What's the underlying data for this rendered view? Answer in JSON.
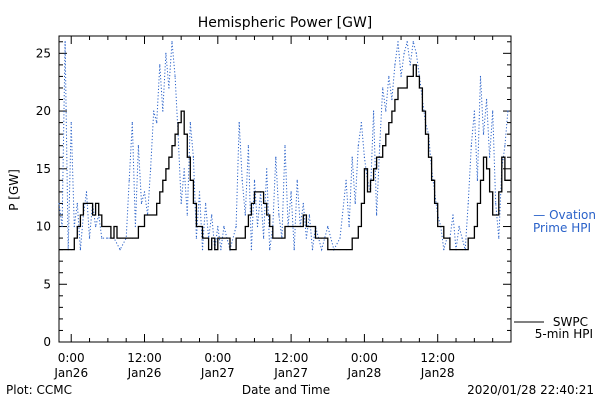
{
  "chart_data": {
    "type": "line",
    "title": "Hemispheric Power [GW]",
    "ylabel": "P [GW]",
    "xlabel": "Date and Time",
    "ylim": [
      0,
      26.5
    ],
    "xlim_hours": [
      -2,
      72
    ],
    "yticks": [
      0,
      5,
      10,
      15,
      20,
      25
    ],
    "xticks": [
      {
        "hour": 0,
        "time": "0:00",
        "date": "Jan26"
      },
      {
        "hour": 12,
        "time": "12:00",
        "date": "Jan26"
      },
      {
        "hour": 24,
        "time": "0:00",
        "date": "Jan27"
      },
      {
        "hour": 36,
        "time": "12:00",
        "date": "Jan27"
      },
      {
        "hour": 48,
        "time": "0:00",
        "date": "Jan28"
      },
      {
        "hour": 60,
        "time": "12:00",
        "date": "Jan28"
      }
    ],
    "footer_left": "Plot: CCMC",
    "footer_right": "2020/01/28 22:40:21",
    "series": [
      {
        "name": "SWPC 5-min HPI",
        "legend_line1": "SWPC",
        "legend_line2": "5-min HPI",
        "color": "#000000",
        "style": "solid-step",
        "points": [
          [
            -2,
            8
          ],
          [
            0,
            8
          ],
          [
            0.5,
            9
          ],
          [
            1,
            10
          ],
          [
            1.5,
            11
          ],
          [
            2,
            12
          ],
          [
            2.5,
            12
          ],
          [
            3,
            12
          ],
          [
            3.5,
            11
          ],
          [
            4,
            12
          ],
          [
            4.5,
            11
          ],
          [
            5,
            10
          ],
          [
            6,
            10
          ],
          [
            6.5,
            9
          ],
          [
            7,
            10
          ],
          [
            7.5,
            9
          ],
          [
            8,
            9
          ],
          [
            9,
            9
          ],
          [
            10,
            9
          ],
          [
            11,
            10
          ],
          [
            12,
            11
          ],
          [
            13,
            11
          ],
          [
            14,
            12
          ],
          [
            14.5,
            13
          ],
          [
            15,
            14
          ],
          [
            15.5,
            15
          ],
          [
            16,
            16
          ],
          [
            16.5,
            17
          ],
          [
            17,
            18
          ],
          [
            17.5,
            19
          ],
          [
            18,
            20
          ],
          [
            18.5,
            18
          ],
          [
            19,
            16
          ],
          [
            19.5,
            14
          ],
          [
            20,
            12
          ],
          [
            20.5,
            10
          ],
          [
            21,
            10
          ],
          [
            21.5,
            9
          ],
          [
            22,
            9
          ],
          [
            22.5,
            8
          ],
          [
            23,
            9
          ],
          [
            23.5,
            8
          ],
          [
            24,
            9
          ],
          [
            25,
            9
          ],
          [
            26,
            8
          ],
          [
            27,
            9
          ],
          [
            28,
            9
          ],
          [
            28.5,
            10
          ],
          [
            29,
            11
          ],
          [
            29.5,
            12
          ],
          [
            30,
            13
          ],
          [
            31,
            13
          ],
          [
            31.5,
            12
          ],
          [
            32,
            11
          ],
          [
            32.5,
            10
          ],
          [
            33,
            9
          ],
          [
            34,
            9
          ],
          [
            35,
            10
          ],
          [
            36,
            10
          ],
          [
            37,
            10
          ],
          [
            38,
            11
          ],
          [
            38.5,
            10
          ],
          [
            39,
            10
          ],
          [
            40,
            9
          ],
          [
            41,
            9
          ],
          [
            42,
            8
          ],
          [
            43,
            8
          ],
          [
            44,
            8
          ],
          [
            45,
            8
          ],
          [
            46,
            9
          ],
          [
            47,
            10
          ],
          [
            47.5,
            12
          ],
          [
            48,
            15
          ],
          [
            48.5,
            13
          ],
          [
            49,
            14
          ],
          [
            49.5,
            15
          ],
          [
            50,
            16
          ],
          [
            51,
            17
          ],
          [
            51.5,
            18
          ],
          [
            52,
            19
          ],
          [
            52.5,
            20
          ],
          [
            53,
            21
          ],
          [
            53.5,
            22
          ],
          [
            54,
            22
          ],
          [
            55,
            23
          ],
          [
            56,
            24
          ],
          [
            56.5,
            23
          ],
          [
            57,
            22
          ],
          [
            57.5,
            20
          ],
          [
            58,
            18
          ],
          [
            58.5,
            16
          ],
          [
            59,
            14
          ],
          [
            59.5,
            12
          ],
          [
            60,
            10
          ],
          [
            61,
            9
          ],
          [
            62,
            8
          ],
          [
            63,
            8
          ],
          [
            64,
            8
          ],
          [
            65,
            9
          ],
          [
            66,
            10
          ],
          [
            66.5,
            12
          ],
          [
            67,
            14
          ],
          [
            67.5,
            16
          ],
          [
            68,
            15
          ],
          [
            68.5,
            13
          ],
          [
            69,
            11
          ],
          [
            69.5,
            11
          ],
          [
            70,
            13
          ],
          [
            70.5,
            16
          ],
          [
            71,
            14
          ]
        ]
      },
      {
        "name": "Ovation Prime HPI",
        "legend_line1": "— Ovation",
        "legend_line2": "Prime HPI",
        "color": "#2a62c9",
        "style": "dotted",
        "points": [
          [
            -2,
            12
          ],
          [
            -1.5,
            10
          ],
          [
            -1,
            26
          ],
          [
            -0.5,
            8
          ],
          [
            0,
            19
          ],
          [
            0.5,
            10
          ],
          [
            1,
            12
          ],
          [
            1.5,
            8
          ],
          [
            2,
            11
          ],
          [
            2.5,
            13
          ],
          [
            3,
            9
          ],
          [
            3.5,
            12
          ],
          [
            4,
            10
          ],
          [
            4.5,
            11
          ],
          [
            5,
            9
          ],
          [
            6,
            9
          ],
          [
            7,
            9
          ],
          [
            8,
            8
          ],
          [
            9,
            9
          ],
          [
            9.5,
            14
          ],
          [
            10,
            19
          ],
          [
            10.5,
            10
          ],
          [
            11,
            17
          ],
          [
            11.5,
            12
          ],
          [
            12,
            13
          ],
          [
            12.5,
            11
          ],
          [
            13,
            15
          ],
          [
            13.5,
            20
          ],
          [
            14,
            19
          ],
          [
            14.5,
            24
          ],
          [
            15,
            20
          ],
          [
            15.5,
            25
          ],
          [
            16,
            22
          ],
          [
            16.5,
            26
          ],
          [
            17,
            23
          ],
          [
            17.5,
            18
          ],
          [
            18,
            12
          ],
          [
            18.5,
            15
          ],
          [
            19,
            11
          ],
          [
            19.5,
            19
          ],
          [
            20,
            16
          ],
          [
            20.5,
            9
          ],
          [
            21,
            13
          ],
          [
            21.5,
            8
          ],
          [
            22,
            12
          ],
          [
            22.5,
            9
          ],
          [
            23,
            11
          ],
          [
            23.5,
            8
          ],
          [
            24,
            10
          ],
          [
            24.5,
            8
          ],
          [
            25,
            10
          ],
          [
            26,
            8
          ],
          [
            27,
            10
          ],
          [
            27.5,
            19
          ],
          [
            28,
            14
          ],
          [
            28.5,
            11
          ],
          [
            29,
            17
          ],
          [
            29.5,
            8
          ],
          [
            30,
            14
          ],
          [
            30.5,
            10
          ],
          [
            31,
            13
          ],
          [
            31.5,
            9
          ],
          [
            32,
            15
          ],
          [
            32.5,
            8
          ],
          [
            33,
            10
          ],
          [
            33.5,
            16
          ],
          [
            34,
            11
          ],
          [
            34.5,
            9
          ],
          [
            35,
            17
          ],
          [
            35.5,
            10
          ],
          [
            36,
            13
          ],
          [
            36.5,
            8
          ],
          [
            37,
            14
          ],
          [
            37.5,
            10
          ],
          [
            38,
            12
          ],
          [
            38.5,
            9
          ],
          [
            39,
            11
          ],
          [
            39.5,
            8
          ],
          [
            40,
            10
          ],
          [
            41,
            8
          ],
          [
            42,
            10
          ],
          [
            43,
            8
          ],
          [
            44,
            9
          ],
          [
            45,
            14
          ],
          [
            45.5,
            10
          ],
          [
            46,
            16
          ],
          [
            46.5,
            12
          ],
          [
            47,
            17
          ],
          [
            47.5,
            19
          ],
          [
            48,
            16
          ],
          [
            48.5,
            14
          ],
          [
            49,
            13
          ],
          [
            49.5,
            20
          ],
          [
            50,
            11
          ],
          [
            50.5,
            17
          ],
          [
            51,
            22
          ],
          [
            51.5,
            20
          ],
          [
            52,
            23
          ],
          [
            52.5,
            21
          ],
          [
            53,
            24
          ],
          [
            53.5,
            26
          ],
          [
            54,
            23
          ],
          [
            54.5,
            25
          ],
          [
            55,
            26
          ],
          [
            55.5,
            24
          ],
          [
            56,
            26
          ],
          [
            56.5,
            25
          ],
          [
            57,
            23
          ],
          [
            57.5,
            21
          ],
          [
            58,
            19
          ],
          [
            58.5,
            18
          ],
          [
            59,
            15
          ],
          [
            59.5,
            13
          ],
          [
            60,
            11
          ],
          [
            60.5,
            10
          ],
          [
            61,
            8
          ],
          [
            61.5,
            9
          ],
          [
            62,
            9
          ],
          [
            62.5,
            11
          ],
          [
            63,
            8
          ],
          [
            63.5,
            10
          ],
          [
            64,
            9
          ],
          [
            64.5,
            8
          ],
          [
            65,
            12
          ],
          [
            65.5,
            17
          ],
          [
            66,
            20
          ],
          [
            66.5,
            14
          ],
          [
            67,
            23
          ],
          [
            67.5,
            18
          ],
          [
            68,
            21
          ],
          [
            68.5,
            16
          ],
          [
            69,
            20
          ],
          [
            69.5,
            12
          ],
          [
            70,
            9
          ],
          [
            70.5,
            15
          ],
          [
            71,
            17
          ],
          [
            71.5,
            20
          ]
        ]
      }
    ]
  }
}
